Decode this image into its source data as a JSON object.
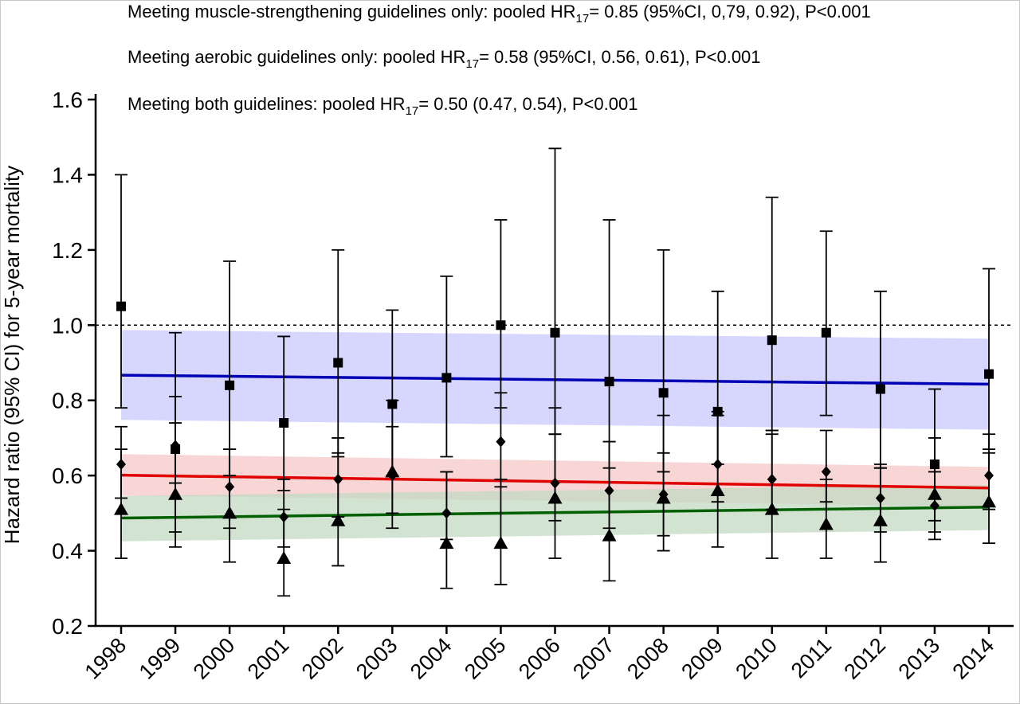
{
  "chart_data": {
    "type": "scatter",
    "ylabel": "Hazard ratio (95% CI) for 5-year mortality",
    "xlabel": "",
    "ylim": [
      0.2,
      1.6
    ],
    "yticks": [
      0.2,
      0.4,
      0.6,
      0.8,
      1.0,
      1.2,
      1.4,
      1.6
    ],
    "ytick_labels": [
      "0.2",
      "0.4",
      "0.6",
      "0.8",
      "1.0",
      "1.2",
      "1.4",
      "1.6"
    ],
    "reference_line": 1.0,
    "categories": [
      "1998",
      "1999",
      "2000",
      "2001",
      "2002",
      "2003",
      "2004",
      "2005",
      "2006",
      "2007",
      "2008",
      "2009",
      "2010",
      "2011",
      "2012",
      "2013",
      "2014"
    ],
    "annotations": [
      {
        "pre": "Meeting muscle-strengthening guidelines only: pooled HR",
        "sub": "17",
        "post": "= 0.85 (95%CI, 0,79, 0.92), P<0.001"
      },
      {
        "pre": "Meeting aerobic guidelines only: pooled HR",
        "sub": "17",
        "post": "= 0.58 (95%CI, 0.56, 0.61), P<0.001"
      },
      {
        "pre": "Meeting both guidelines: pooled HR",
        "sub": "17",
        "post": "= 0.50 (0.47, 0.54), P<0.001"
      }
    ],
    "series": [
      {
        "marker": "square",
        "point": [
          1.05,
          0.67,
          0.84,
          0.74,
          0.9,
          0.79,
          0.86,
          1.0,
          0.98,
          0.85,
          0.82,
          0.77,
          0.96,
          0.98,
          0.83,
          0.63,
          0.87
        ],
        "lower": [
          0.78,
          0.58,
          0.6,
          0.56,
          0.65,
          0.6,
          0.65,
          0.78,
          0.71,
          0.62,
          0.61,
          0.63,
          0.72,
          0.76,
          0.62,
          0.48,
          0.67
        ],
        "upper": [
          1.4,
          0.98,
          1.17,
          0.97,
          1.2,
          1.04,
          1.13,
          1.28,
          1.47,
          1.28,
          1.2,
          1.09,
          1.34,
          1.25,
          1.09,
          0.83,
          1.15
        ],
        "trend": [
          0.867,
          0.843
        ],
        "band_lower": [
          0.748,
          0.722
        ],
        "band_upper": [
          0.987,
          0.964
        ],
        "line_color": "#0000b4",
        "band_color": "#c8c8ff"
      },
      {
        "marker": "diamond",
        "point": [
          0.63,
          0.68,
          0.57,
          0.49,
          0.59,
          0.6,
          0.5,
          0.69,
          0.58,
          0.56,
          0.55,
          0.63,
          0.59,
          0.61,
          0.54,
          0.52,
          0.6
        ],
        "lower": [
          0.54,
          0.45,
          0.46,
          0.41,
          0.49,
          0.5,
          0.43,
          0.57,
          0.48,
          0.46,
          0.44,
          0.53,
          0.51,
          0.53,
          0.45,
          0.45,
          0.51
        ],
        "upper": [
          0.73,
          0.81,
          0.67,
          0.59,
          0.7,
          0.73,
          0.61,
          0.82,
          0.71,
          0.69,
          0.66,
          0.76,
          0.72,
          0.72,
          0.62,
          0.61,
          0.71
        ],
        "trend": [
          0.601,
          0.567
        ],
        "band_lower": [
          0.547,
          0.518
        ],
        "band_upper": [
          0.657,
          0.623
        ],
        "line_color": "#e00000",
        "band_color": "#f5c8c8"
      },
      {
        "marker": "triangle",
        "point": [
          0.51,
          0.55,
          0.5,
          0.38,
          0.48,
          0.61,
          0.42,
          0.42,
          0.54,
          0.44,
          0.54,
          0.56,
          0.51,
          0.47,
          0.48,
          0.55,
          0.53
        ],
        "lower": [
          0.38,
          0.41,
          0.37,
          0.28,
          0.36,
          0.46,
          0.3,
          0.31,
          0.38,
          0.32,
          0.4,
          0.41,
          0.38,
          0.38,
          0.37,
          0.43,
          0.42
        ],
        "upper": [
          0.67,
          0.74,
          0.67,
          0.51,
          0.66,
          0.8,
          0.61,
          0.59,
          0.78,
          0.69,
          0.76,
          0.77,
          0.71,
          0.59,
          0.63,
          0.7,
          0.66
        ],
        "trend": [
          0.487,
          0.516
        ],
        "band_lower": [
          0.425,
          0.455
        ],
        "band_upper": [
          0.546,
          0.575
        ],
        "line_color": "#006000",
        "band_color": "#c3d9c3"
      }
    ]
  }
}
